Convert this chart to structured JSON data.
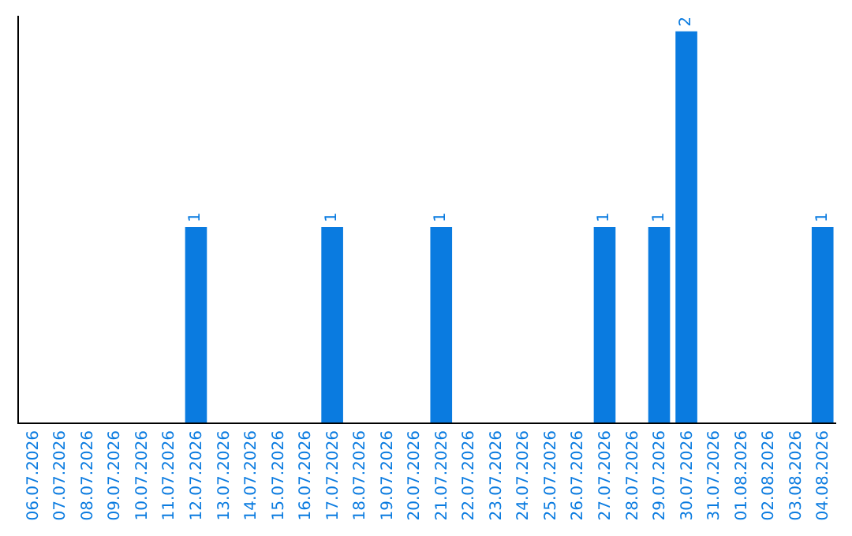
{
  "chart_data": {
    "type": "bar",
    "categories": [
      "06.07.2026",
      "07.07.2026",
      "08.07.2026",
      "09.07.2026",
      "10.07.2026",
      "11.07.2026",
      "12.07.2026",
      "13.07.2026",
      "14.07.2026",
      "15.07.2026",
      "16.07.2026",
      "17.07.2026",
      "18.07.2026",
      "19.07.2026",
      "20.07.2026",
      "21.07.2026",
      "22.07.2026",
      "23.07.2026",
      "24.07.2026",
      "25.07.2026",
      "26.07.2026",
      "27.07.2026",
      "28.07.2026",
      "29.07.2026",
      "30.07.2026",
      "31.07.2026",
      "01.08.2026",
      "02.08.2026",
      "03.08.2026",
      "04.08.2026"
    ],
    "values": [
      0,
      0,
      0,
      0,
      0,
      0,
      1,
      0,
      0,
      0,
      0,
      1,
      0,
      0,
      0,
      1,
      0,
      0,
      0,
      0,
      0,
      1,
      0,
      1,
      2,
      0,
      0,
      0,
      0,
      1
    ],
    "color": "#0a7be0",
    "value_labels": [
      null,
      null,
      null,
      null,
      null,
      null,
      "1",
      null,
      null,
      null,
      null,
      "1",
      null,
      null,
      null,
      "1",
      null,
      null,
      null,
      null,
      null,
      "1",
      null,
      "1",
      "2",
      null,
      null,
      null,
      null,
      "1"
    ],
    "tick_labels": "x"
  }
}
